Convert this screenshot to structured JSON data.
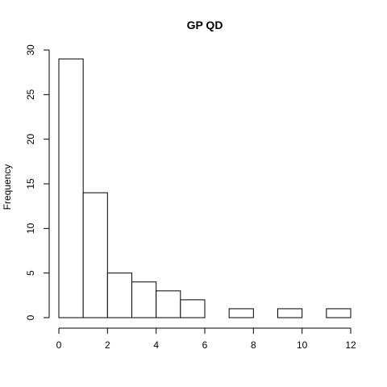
{
  "chart_data": {
    "type": "bar",
    "title": "GP QD",
    "xlabel": "",
    "ylabel": "Frequency",
    "categories": [
      "0-1",
      "1-2",
      "2-3",
      "3-4",
      "4-5",
      "5-6",
      "6-7",
      "7-8",
      "8-9",
      "9-10",
      "10-11",
      "11-12"
    ],
    "bins": [
      [
        0,
        1
      ],
      [
        1,
        2
      ],
      [
        2,
        3
      ],
      [
        3,
        4
      ],
      [
        4,
        5
      ],
      [
        5,
        6
      ],
      [
        6,
        7
      ],
      [
        7,
        8
      ],
      [
        8,
        9
      ],
      [
        9,
        10
      ],
      [
        10,
        11
      ],
      [
        11,
        12
      ]
    ],
    "values": [
      29,
      14,
      5,
      4,
      3,
      2,
      0,
      1,
      0,
      1,
      0,
      1
    ],
    "xlim": [
      0,
      12
    ],
    "ylim": [
      0,
      30
    ],
    "x_ticks": [
      "0",
      "2",
      "4",
      "6",
      "8",
      "10",
      "12"
    ],
    "y_ticks": [
      "0",
      "5",
      "10",
      "15",
      "20",
      "25",
      "30"
    ],
    "grid": false,
    "legend": "none",
    "colors": {
      "bar_fill": "#ffffff",
      "bar_stroke": "#000000",
      "background": "#ffffff"
    }
  }
}
